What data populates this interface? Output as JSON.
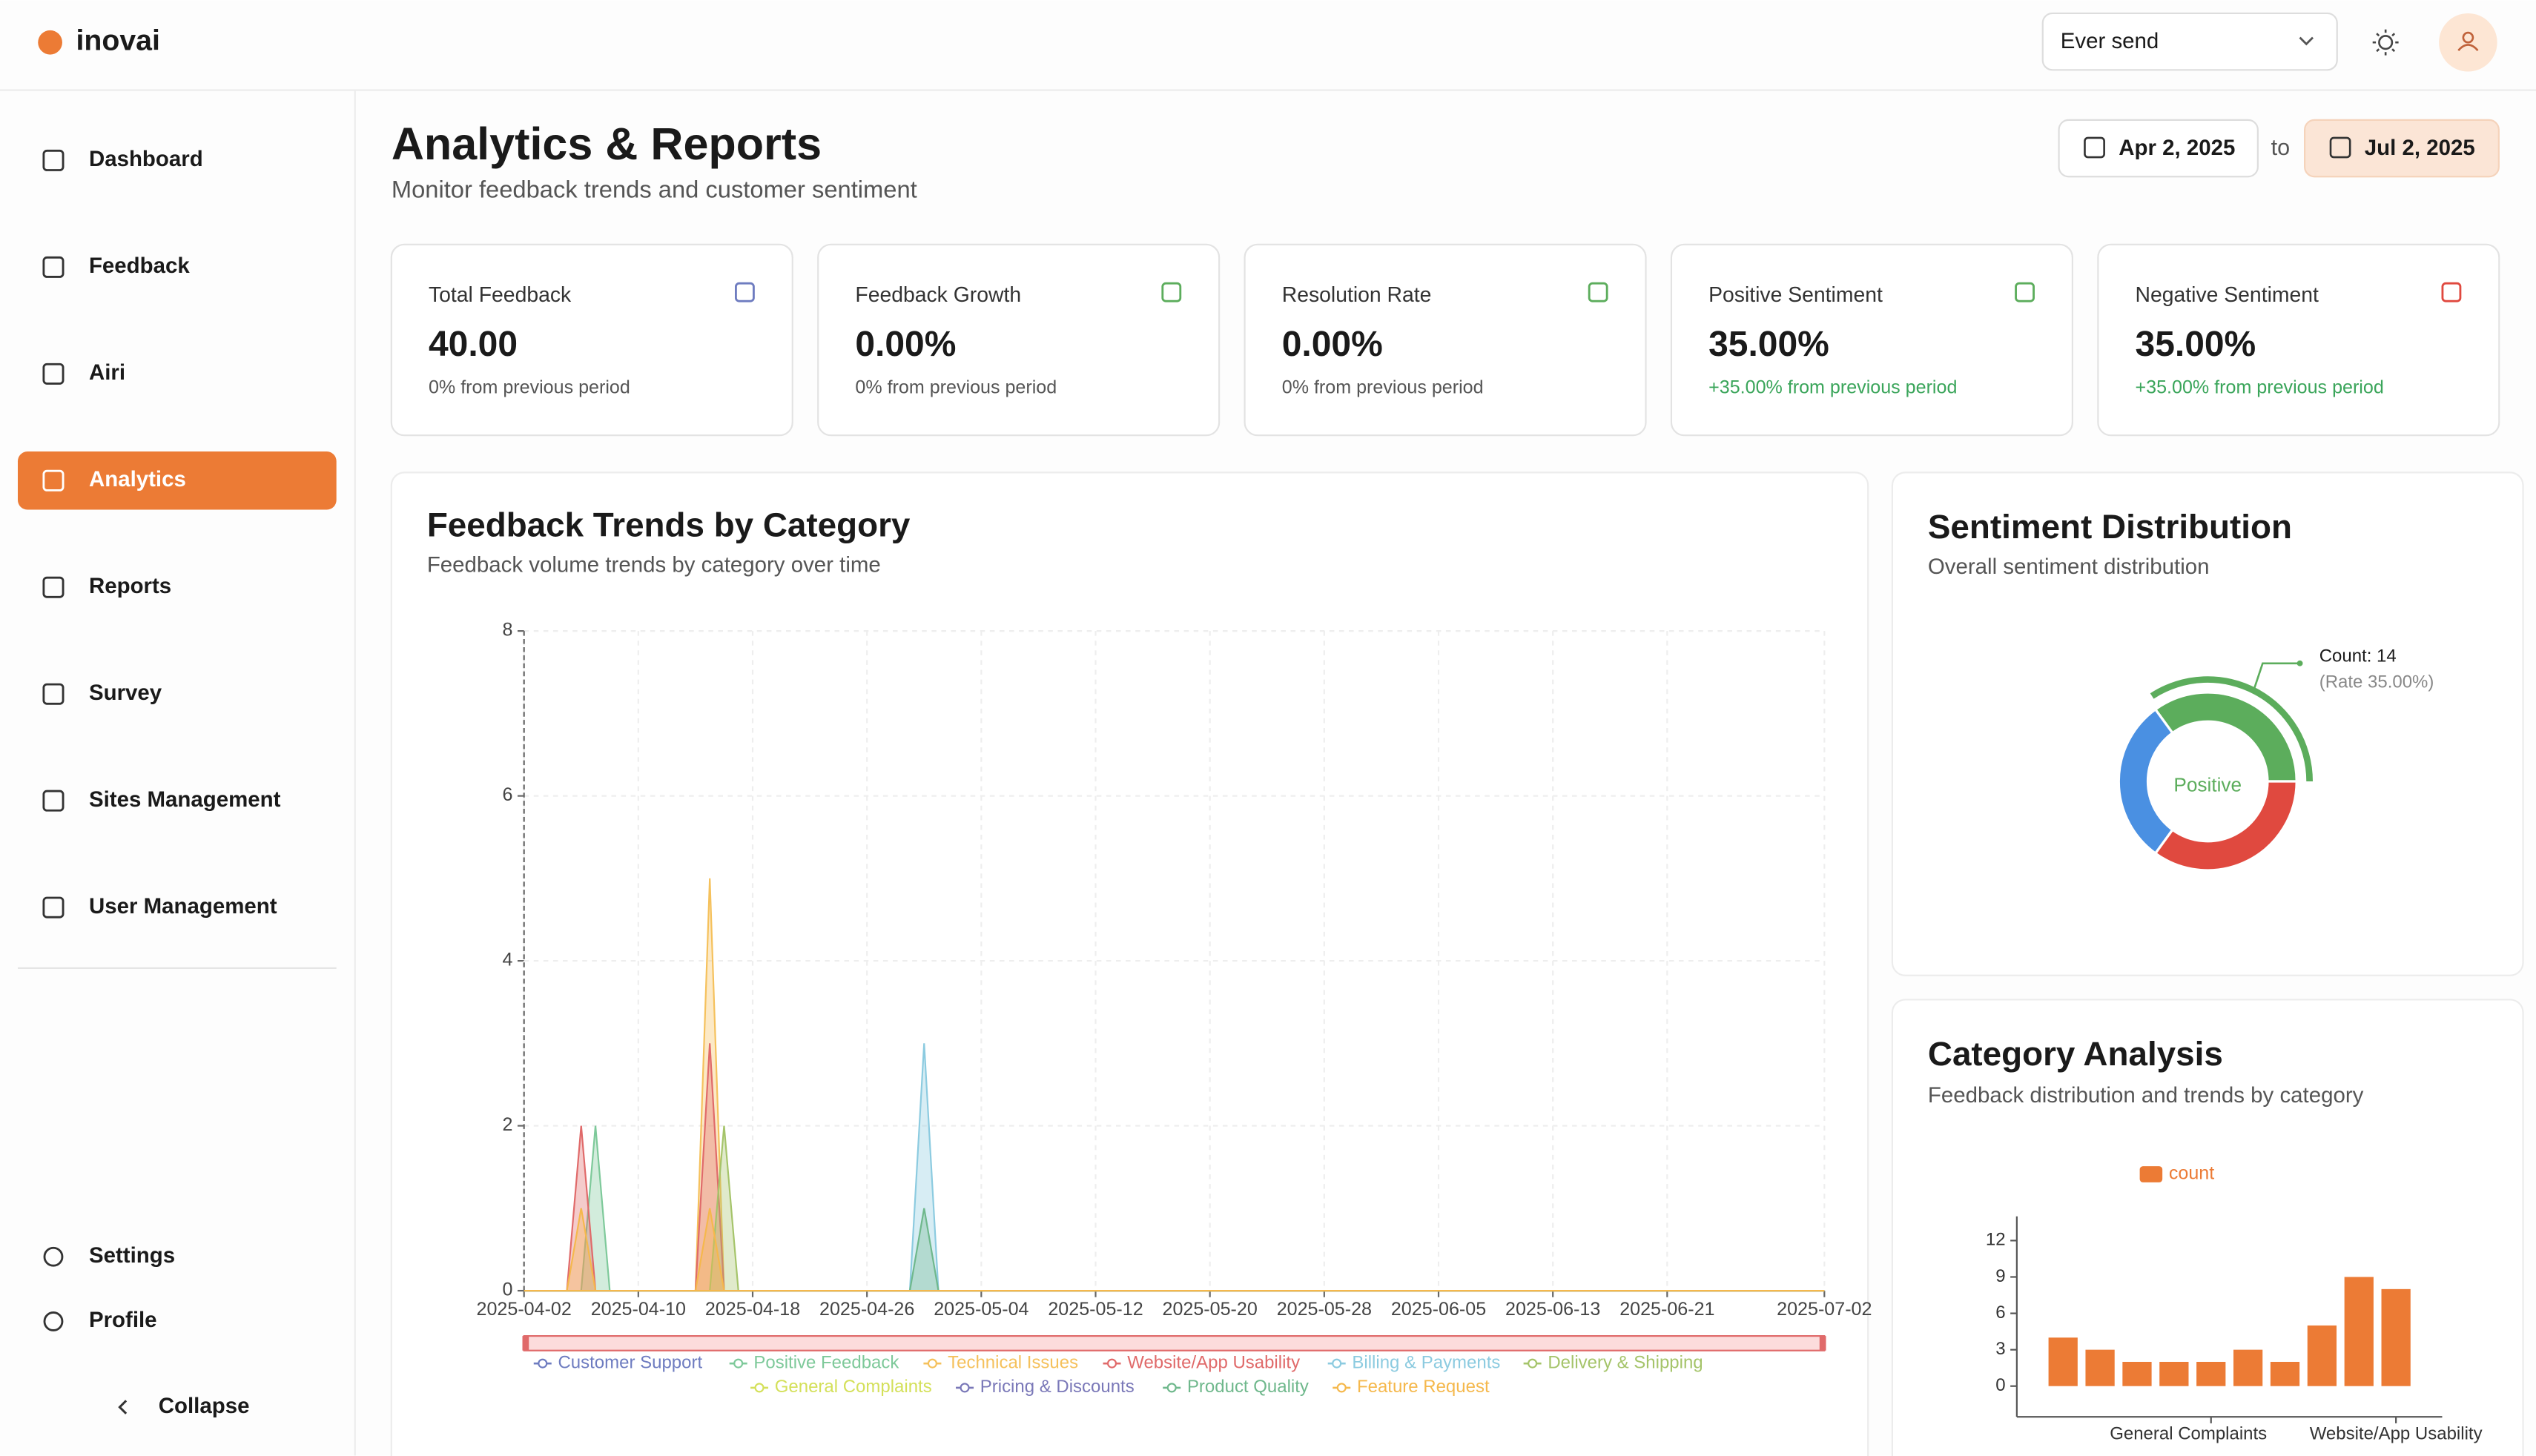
{
  "header": {
    "brand": "inovai",
    "site_select": "Ever send"
  },
  "sidebar": {
    "items": [
      "Dashboard",
      "Feedback",
      "Airi",
      "Analytics",
      "Reports",
      "Survey",
      "Sites Management",
      "User Management"
    ],
    "active": 3,
    "bottom": [
      "Settings",
      "Profile"
    ],
    "collapse": "Collapse"
  },
  "page": {
    "title": "Analytics & Reports",
    "subtitle": "Monitor feedback trends and customer sentiment",
    "date_from": "Apr 2, 2025",
    "date_sep": "to",
    "date_to": "Jul 2, 2025"
  },
  "stats": [
    {
      "label": "Total Feedback",
      "value": "40.00",
      "change": "0% from previous period",
      "positive": false
    },
    {
      "label": "Feedback Growth",
      "value": "0.00%",
      "change": "0% from previous period",
      "positive": false
    },
    {
      "label": "Resolution Rate",
      "value": "0.00%",
      "change": "0% from previous period",
      "positive": false
    },
    {
      "label": "Positive Sentiment",
      "value": "35.00%",
      "change": "+35.00% from previous period",
      "positive": true
    },
    {
      "label": "Negative Sentiment",
      "value": "35.00%",
      "change": "+35.00% from previous period",
      "positive": true
    }
  ],
  "chart_data": [
    {
      "type": "area",
      "title": "Feedback Trends by Category",
      "subtitle": "Feedback volume trends by category over time",
      "x": [
        "2025-04-02",
        "2025-04-05",
        "2025-04-06",
        "2025-04-07",
        "2025-04-08",
        "2025-04-14",
        "2025-04-15",
        "2025-04-16",
        "2025-04-17",
        "2025-04-29",
        "2025-04-30",
        "2025-05-01",
        "2025-07-02"
      ],
      "xlim": [
        "2025-04-02",
        "2025-07-02"
      ],
      "xticks": [
        "2025-04-02",
        "2025-04-10",
        "2025-04-18",
        "2025-04-26",
        "2025-05-04",
        "2025-05-12",
        "2025-05-20",
        "2025-05-28",
        "2025-06-05",
        "2025-06-13",
        "2025-06-21",
        "2025-07-02"
      ],
      "ylim": [
        0,
        8
      ],
      "yticks": [
        0,
        2,
        4,
        6,
        8
      ],
      "grid": true,
      "series": [
        {
          "name": "Customer Support",
          "color": "#6e7cc0",
          "values": [
            0,
            0,
            0,
            0,
            0,
            0,
            0,
            0,
            0,
            0,
            0,
            0,
            0
          ]
        },
        {
          "name": "Positive Feedback",
          "color": "#7ec99a",
          "values": [
            0,
            0,
            0,
            2,
            0,
            0,
            0,
            0,
            0,
            0,
            0,
            0,
            0
          ]
        },
        {
          "name": "Technical Issues",
          "color": "#f5c15c",
          "values": [
            0,
            0,
            0,
            0,
            0,
            0,
            5,
            0,
            0,
            0,
            0,
            0,
            0
          ]
        },
        {
          "name": "Website/App Usability",
          "color": "#e06a6a",
          "values": [
            0,
            0,
            2,
            0,
            0,
            0,
            3,
            0,
            0,
            0,
            0,
            0,
            0
          ]
        },
        {
          "name": "Billing & Payments",
          "color": "#8ccbe0",
          "values": [
            0,
            0,
            0,
            0,
            0,
            0,
            0,
            0,
            0,
            0,
            3,
            0,
            0
          ]
        },
        {
          "name": "Delivery & Shipping",
          "color": "#a5c46a",
          "values": [
            0,
            0,
            0,
            0,
            0,
            0,
            0,
            2,
            0,
            0,
            0,
            0,
            0
          ]
        },
        {
          "name": "General Complaints",
          "color": "#d4e05a",
          "values": [
            0,
            0,
            0,
            0,
            0,
            0,
            0,
            0,
            0,
            0,
            0,
            0,
            0
          ]
        },
        {
          "name": "Pricing & Discounts",
          "color": "#7a78b8",
          "values": [
            0,
            0,
            0,
            0,
            0,
            0,
            0,
            0,
            0,
            0,
            0,
            0,
            0
          ]
        },
        {
          "name": "Product Quality",
          "color": "#6fb88c",
          "values": [
            0,
            0,
            0,
            0,
            0,
            0,
            0,
            0,
            0,
            0,
            1,
            0,
            0
          ]
        },
        {
          "name": "Feature Request",
          "color": "#f5b84c",
          "values": [
            0,
            0,
            1,
            0,
            0,
            0,
            1,
            0,
            0,
            0,
            0,
            0,
            0
          ]
        }
      ]
    },
    {
      "type": "donut",
      "title": "Sentiment Distribution",
      "subtitle": "Overall sentiment distribution",
      "categories": [
        "Positive",
        null,
        null
      ],
      "values": [
        35,
        35,
        30
      ],
      "colors": [
        "#5cad5c",
        "#e0493f",
        "#4a90e2"
      ],
      "annotation": [
        "Count: 14",
        "(Rate 35.00%)"
      ]
    },
    {
      "type": "bar",
      "title": "Category Analysis",
      "subtitle": "Feedback distribution and trends by category",
      "legend": "count",
      "color": "#ec7b35",
      "categories": [
        null,
        null,
        null,
        null,
        "General Complaints",
        null,
        null,
        null,
        null,
        "Website/App Usability"
      ],
      "values": [
        4,
        3,
        2,
        2,
        2,
        3,
        2,
        5,
        9,
        8
      ],
      "ylim": [
        0,
        14
      ],
      "yticks": [
        0,
        3,
        6,
        9,
        12
      ]
    }
  ]
}
